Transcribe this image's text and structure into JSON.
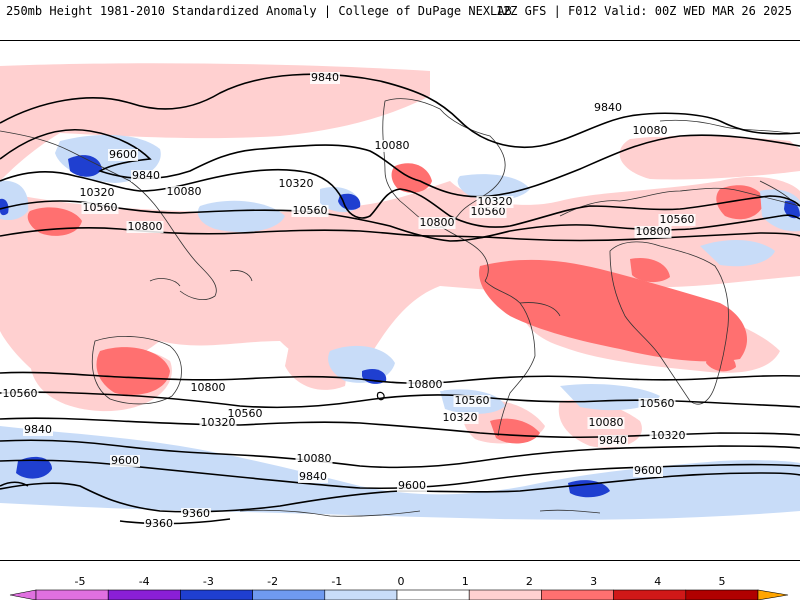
{
  "header": {
    "left": "250mb Height 1981-2010 Standardized Anomaly | College of DuPage NEXLAB",
    "right": "12Z GFS | F012 Valid: 00Z WED MAR 26 2025"
  },
  "colors": {
    "anom_neg5": "#e070e0",
    "anom_neg4": "#8a1fd6",
    "anom_neg3": "#1f3fd0",
    "anom_neg2": "#6f9af0",
    "anom_neg1": "#c8dcf8",
    "anom_0": "#ffffff",
    "anom_pos1": "#ffd0d0",
    "anom_pos2": "#ff7070",
    "anom_pos3": "#d01818",
    "anom_pos4": "#b00000",
    "anom_pos5": "#ffa500",
    "contour": "#000000",
    "coast": "#333333"
  },
  "contour_labels": [
    {
      "id": "l1",
      "text": "9840"
    },
    {
      "id": "l2",
      "text": "9840"
    },
    {
      "id": "l3",
      "text": "10080"
    },
    {
      "id": "l4",
      "text": "9600"
    },
    {
      "id": "l5",
      "text": "9840"
    },
    {
      "id": "l6",
      "text": "10080"
    },
    {
      "id": "l7",
      "text": "10320"
    },
    {
      "id": "l8",
      "text": "10560"
    },
    {
      "id": "l9",
      "text": "10800"
    },
    {
      "id": "l10",
      "text": "10080"
    },
    {
      "id": "l11",
      "text": "10320"
    },
    {
      "id": "l12",
      "text": "10560"
    },
    {
      "id": "l13",
      "text": "10560"
    },
    {
      "id": "l14",
      "text": "10800"
    },
    {
      "id": "l15",
      "text": "10320"
    },
    {
      "id": "l16",
      "text": "10560"
    },
    {
      "id": "l17",
      "text": "10800"
    },
    {
      "id": "l18",
      "text": "10800"
    },
    {
      "id": "l19",
      "text": "10800"
    },
    {
      "id": "l20",
      "text": "10560"
    },
    {
      "id": "l21",
      "text": "10560"
    },
    {
      "id": "l22",
      "text": "10320"
    },
    {
      "id": "l23",
      "text": "10560"
    },
    {
      "id": "l24",
      "text": "10320"
    },
    {
      "id": "l25",
      "text": "10560"
    },
    {
      "id": "l26",
      "text": "10080"
    },
    {
      "id": "l27",
      "text": "9840"
    },
    {
      "id": "l28",
      "text": "10320"
    },
    {
      "id": "l29",
      "text": "9840"
    },
    {
      "id": "l30",
      "text": "9600"
    },
    {
      "id": "l31",
      "text": "10080"
    },
    {
      "id": "l32",
      "text": "9840"
    },
    {
      "id": "l33",
      "text": "9600"
    },
    {
      "id": "l34",
      "text": "9600"
    },
    {
      "id": "l35",
      "text": "9360"
    },
    {
      "id": "l36",
      "text": "9360"
    }
  ],
  "colorbar": {
    "ticks": [
      "-5",
      "-4",
      "-3",
      "-2",
      "-1",
      "0",
      "1",
      "2",
      "3",
      "4",
      "5"
    ]
  }
}
